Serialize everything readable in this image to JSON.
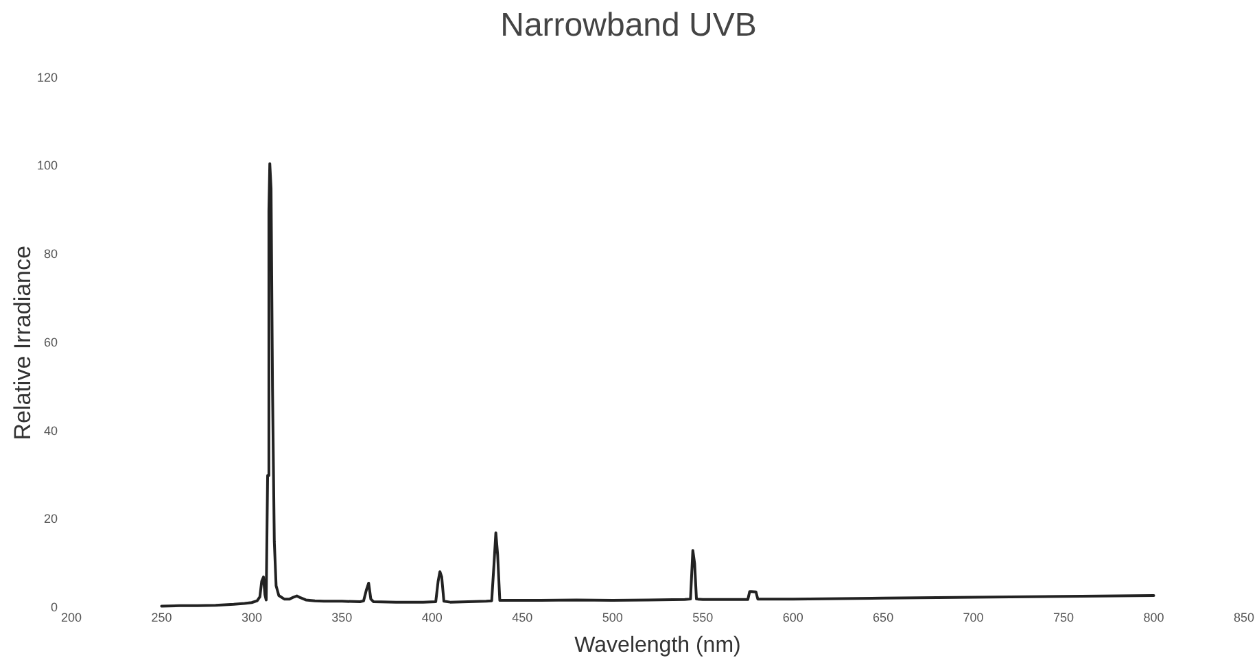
{
  "chart_data": {
    "type": "line",
    "title": "Narrowband UVB",
    "xlabel": "Wavelength (nm)",
    "ylabel": "Relative Irradiance",
    "x": [
      250,
      260,
      270,
      280,
      290,
      296,
      300,
      303,
      304.5,
      305.5,
      306.5,
      307.3,
      308,
      308.8,
      309.5,
      310,
      310.7,
      311.5,
      312.5,
      313.5,
      315,
      318,
      321,
      323,
      325,
      327,
      330,
      335,
      340,
      350,
      360,
      362,
      363.5,
      364.8,
      366,
      367.5,
      380,
      395,
      402,
      403.3,
      404.3,
      405.3,
      406.5,
      410,
      420,
      430,
      433,
      434.3,
      435.3,
      436.3,
      437.5,
      445,
      460,
      480,
      500,
      520,
      540,
      543.2,
      544.5,
      545.5,
      546.5,
      550,
      565,
      575,
      576,
      577,
      579.5,
      580.5,
      582,
      600,
      650,
      700,
      750,
      800
    ],
    "series": [
      {
        "color": "#222222",
        "values": [
          0.4,
          0.5,
          0.5,
          0.6,
          0.8,
          1.0,
          1.2,
          1.6,
          2.5,
          6,
          7,
          3,
          1.8,
          30,
          90,
          100.6,
          95,
          50,
          15,
          5,
          2.8,
          2,
          2,
          2.4,
          2.7,
          2.3,
          1.8,
          1.6,
          1.5,
          1.5,
          1.4,
          1.6,
          4,
          5.6,
          2,
          1.4,
          1.3,
          1.3,
          1.4,
          6,
          8.2,
          7,
          1.5,
          1.3,
          1.4,
          1.5,
          1.6,
          10,
          17,
          12,
          1.7,
          1.7,
          1.7,
          1.8,
          1.7,
          1.8,
          1.9,
          2,
          13,
          10,
          2,
          1.9,
          1.9,
          1.9,
          3.7,
          3.7,
          3.6,
          2,
          2,
          2,
          2.2,
          2.4,
          2.6,
          2.8
        ]
      }
    ],
    "xlim": [
      200,
      850
    ],
    "xticks": [
      200,
      250,
      300,
      350,
      400,
      450,
      500,
      550,
      600,
      650,
      700,
      750,
      800,
      850
    ],
    "ylim": [
      0,
      120
    ],
    "yticks": [
      0,
      20,
      40,
      60,
      80,
      100,
      120
    ],
    "line_style": "solid"
  }
}
